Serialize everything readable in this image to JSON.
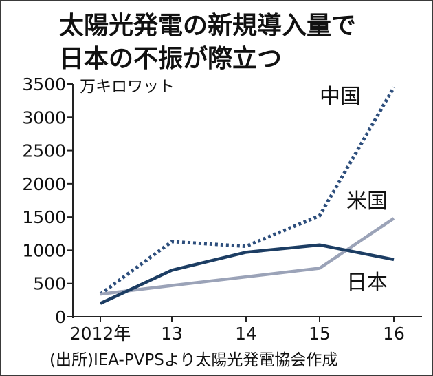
{
  "title": {
    "line1": "太陽光発電の新規導入量で",
    "line2": "日本の不振が際立つ"
  },
  "source": "(出所)IEA-PVPSより太陽光発電協会作成",
  "chart_data": {
    "type": "line",
    "unit_label": "万キロワット",
    "categories": [
      "2012年",
      "13",
      "14",
      "15",
      "16"
    ],
    "ylim": [
      0,
      3500
    ],
    "yticks": [
      0,
      500,
      1000,
      1500,
      2000,
      2500,
      3000,
      3500
    ],
    "grid": false,
    "series": [
      {
        "name": "中国",
        "values": [
          340,
          1130,
          1060,
          1520,
          3450
        ],
        "color": "#2d4e7c",
        "style": "dotted"
      },
      {
        "name": "米国",
        "values": [
          340,
          470,
          600,
          730,
          1480
        ],
        "color": "#9ba3b8",
        "style": "solid"
      },
      {
        "name": "日本",
        "values": [
          200,
          700,
          970,
          1080,
          860
        ],
        "color": "#1c3d63",
        "style": "solid"
      }
    ]
  }
}
